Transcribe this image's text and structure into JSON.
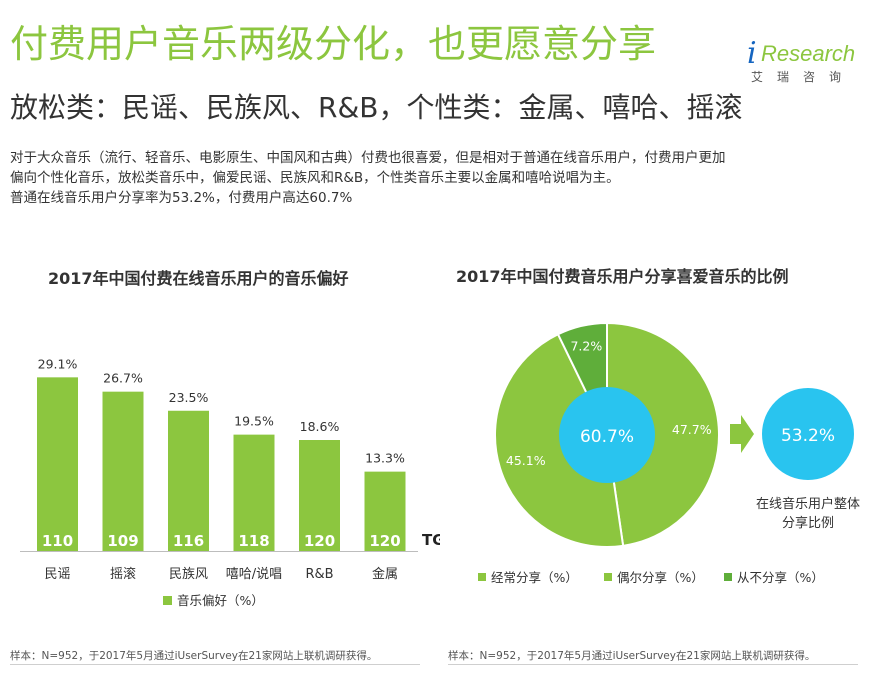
{
  "header": {
    "title": "付费用户音乐两级分化，也更愿意分享",
    "subtitle": "放松类：民谣、民族风、R&B，个性类：金属、嘻哈、摇滚",
    "description": [
      "对于大众音乐（流行、轻音乐、电影原生、中国风和古典）付费也很喜爱，但是相对于普通在线音乐用户，付费用户更加",
      "偏向个性化音乐，放松类音乐中，偏爱民谣、民族风和R&B，个性类音乐主要以金属和嘻哈说唱为主。",
      "普通在线音乐用户分享率为53.2%，付费用户高达60.7%"
    ]
  },
  "logo": {
    "i": "i",
    "text": "Research",
    "cn": "艾瑞咨询"
  },
  "colors": {
    "green": "#8cc63f",
    "dark_green": "#5fae3a",
    "blue": "#29c4ef"
  },
  "chart_data": [
    {
      "type": "bar",
      "title": "2017年中国付费在线音乐用户的音乐偏好",
      "categories": [
        "民谣",
        "摇滚",
        "民族风",
        "嘻哈/说唱",
        "R&B",
        "金属"
      ],
      "series": [
        {
          "name": "音乐偏好（%）",
          "values": [
            29.1,
            26.7,
            23.5,
            19.5,
            18.6,
            13.3
          ]
        }
      ],
      "value_labels": [
        "29.1%",
        "26.7%",
        "23.5%",
        "19.5%",
        "18.6%",
        "13.3%"
      ],
      "tgi": [
        110,
        109,
        116,
        118,
        120,
        120
      ],
      "tgi_label": "TGI",
      "ylim": [
        0,
        31
      ],
      "legend": "bottom"
    },
    {
      "type": "pie",
      "title": "2017年中国付费音乐用户分享喜爱音乐的比例",
      "center_label": "60.7%",
      "slices": [
        {
          "name": "经常分享（%）",
          "value": 47.7,
          "label": "47.7%"
        },
        {
          "name": "偶尔分享（%）",
          "value": 45.1,
          "label": "45.1%"
        },
        {
          "name": "从不分享（%）",
          "value": 7.2,
          "label": "7.2%"
        }
      ],
      "comparison": {
        "value": "53.2%",
        "caption_line1": "在线音乐用户整体",
        "caption_line2": "分享比例"
      },
      "legend": "bottom"
    }
  ],
  "notes": {
    "left": "样本：N=952，于2017年5月通过iUserSurvey在21家网站上联机调研获得。",
    "right": "样本：N=952，于2017年5月通过iUserSurvey在21家网站上联机调研获得。"
  }
}
